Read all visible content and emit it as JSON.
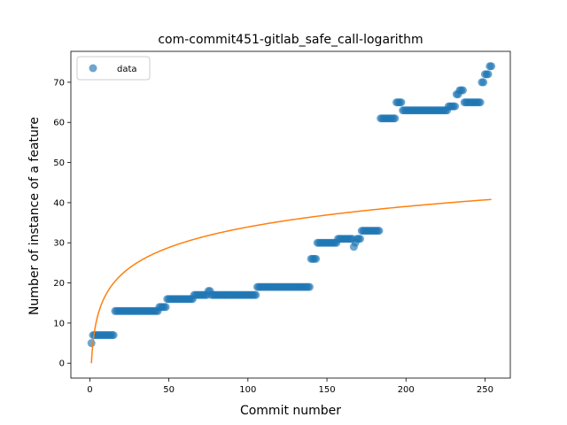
{
  "chart_data": {
    "type": "scatter",
    "title": "com-commit451-gitlab_safe_call-logarithm",
    "xlabel": "Commit number",
    "ylabel": "Number of instance of a feature",
    "xlim": [
      -12,
      266
    ],
    "ylim": [
      -3.7,
      77.7
    ],
    "xticks": [
      0,
      50,
      100,
      150,
      200,
      250
    ],
    "yticks": [
      0,
      10,
      20,
      30,
      40,
      50,
      60,
      70
    ],
    "grid": false,
    "legend_position": "top-left",
    "colors": {
      "data": "#1f77b4",
      "fit": "#ff7f0e"
    },
    "series": [
      {
        "name": "data",
        "kind": "points",
        "segments": [
          [
            1,
            1,
            5
          ],
          [
            2,
            15,
            7
          ],
          [
            16,
            43,
            13
          ],
          [
            44,
            48,
            14
          ],
          [
            49,
            65,
            16
          ],
          [
            66,
            74,
            17
          ],
          [
            75,
            76,
            18
          ],
          [
            77,
            105,
            17
          ],
          [
            106,
            139,
            19
          ],
          [
            140,
            143,
            26
          ],
          [
            144,
            156,
            30
          ],
          [
            157,
            166,
            31
          ],
          [
            167,
            167,
            29
          ],
          [
            168,
            168,
            30
          ],
          [
            169,
            171,
            31
          ],
          [
            172,
            183,
            33
          ],
          [
            184,
            193,
            61
          ],
          [
            194,
            197,
            65
          ],
          [
            198,
            226,
            63
          ],
          [
            227,
            231,
            64
          ],
          [
            232,
            233,
            67
          ],
          [
            234,
            236,
            68
          ],
          [
            237,
            247,
            65
          ],
          [
            248,
            249,
            70
          ],
          [
            250,
            252,
            72
          ],
          [
            253,
            254,
            74
          ]
        ]
      },
      {
        "name": "",
        "kind": "line",
        "function": "logarithm",
        "a": 7.37,
        "x_start": 1,
        "x_end": 254
      }
    ]
  }
}
